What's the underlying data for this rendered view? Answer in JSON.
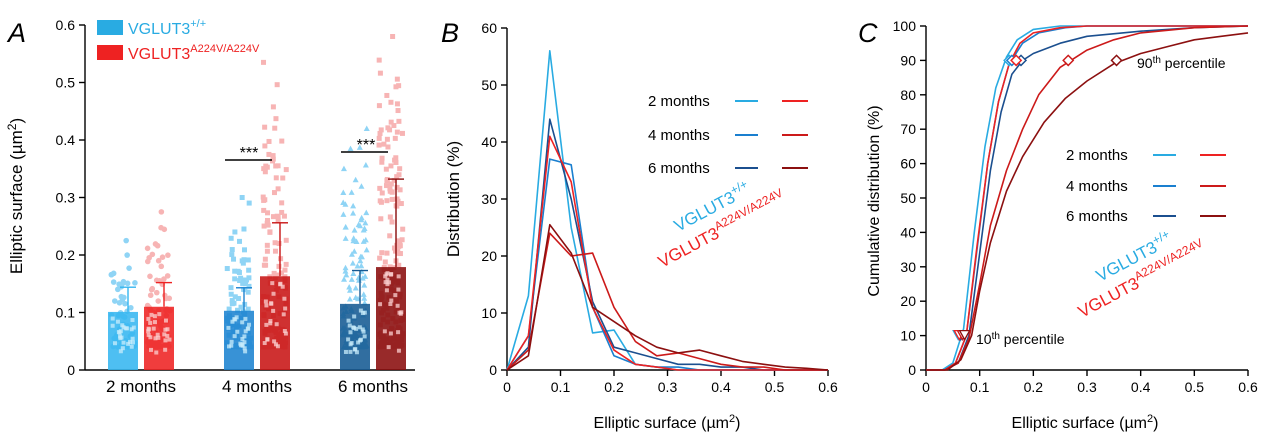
{
  "colors": {
    "wt_2": "#29abe2",
    "wt_4": "#1a7fcf",
    "wt_6": "#1b4f8f",
    "mut_2": "#ee2222",
    "mut_4": "#cc1a1a",
    "mut_6": "#8c1010",
    "wt_bar_2": "#35b6f0",
    "wt_bar_4": "#1d83d0",
    "wt_bar_6": "#155a93",
    "mut_bar_2": "#ee2222",
    "mut_bar_4": "#c81414",
    "mut_bar_6": "#8a0c0c",
    "wt_dots": "#8fd4f5",
    "mut_dots": "#f7b4b4"
  },
  "panels": {
    "A": {
      "letter": "A",
      "ylabel_main": "Elliptic surface (µm",
      "ylabel_sup": "2",
      "ylabel_end": ")",
      "legend_wt_main": "VGLUT3",
      "legend_wt_sup": "+/+",
      "legend_mut_main": "VGLUT3",
      "legend_mut_sup": "A224V/A224V",
      "sig_4": "***",
      "sig_6": "***"
    },
    "B": {
      "letter": "B",
      "ylabel": "Distribution (%)",
      "xlabel_main": "Elliptic surface (µm",
      "xlabel_sup": "2",
      "xlabel_end": ")",
      "legend_rows": [
        "2 months",
        "4 months",
        "6 months"
      ],
      "geno_wt_main": "VGLUT3",
      "geno_wt_sup": "+/+",
      "geno_mut_main": "VGLUT3",
      "geno_mut_sup": "A224V/A224V"
    },
    "C": {
      "letter": "C",
      "ylabel": "Cumulative distribution (%)",
      "xlabel_main": "Elliptic surface (µm",
      "xlabel_sup": "2",
      "xlabel_end": ")",
      "legend_rows": [
        "2 months",
        "4 months",
        "6 months"
      ],
      "geno_wt_main": "VGLUT3",
      "geno_wt_sup": "+/+",
      "geno_mut_main": "VGLUT3",
      "geno_mut_sup": "A224V/A224V",
      "p90_main": "90",
      "p90_sup": "th",
      "p90_end": " percentile",
      "p10_main": "10",
      "p10_sup": "th",
      "p10_end": " percentile"
    }
  },
  "chart_data": [
    {
      "type": "bar",
      "panel": "A",
      "categories": [
        "2 months",
        "4 months",
        "6 months"
      ],
      "ylim": [
        0,
        0.6
      ],
      "yticks": [
        "0",
        "0.1",
        "0.2",
        "0.3",
        "0.4",
        "0.5",
        "0.6"
      ],
      "ylabel": "Elliptic surface (µm2)",
      "series": [
        {
          "name": "VGLUT3+/+",
          "values": [
            0.101,
            0.103,
            0.115
          ],
          "sd": [
            0.043,
            0.04,
            0.058
          ],
          "max_points": [
            0.225,
            0.3,
            0.42
          ]
        },
        {
          "name": "VGLUT3A224V/A224V",
          "values": [
            0.11,
            0.163,
            0.179
          ],
          "sd": [
            0.042,
            0.093,
            0.153
          ],
          "max_points": [
            0.275,
            0.535,
            0.58
          ]
        }
      ],
      "significance": [
        {
          "category": "4 months",
          "y": 0.366,
          "label": "***"
        },
        {
          "category": "6 months",
          "y": 0.378,
          "label": "***"
        }
      ]
    },
    {
      "type": "line",
      "panel": "B",
      "xlim": [
        0,
        0.6
      ],
      "ylim": [
        0,
        60
      ],
      "xticks": [
        "0",
        "0.1",
        "0.2",
        "0.3",
        "0.4",
        "0.5",
        "0.6"
      ],
      "yticks": [
        "0",
        "10",
        "20",
        "30",
        "40",
        "50",
        "60"
      ],
      "xlabel": "Elliptic surface (µm2)",
      "ylabel": "Distribution (%)",
      "x": [
        0,
        0.04,
        0.08,
        0.12,
        0.16,
        0.2,
        0.24,
        0.28,
        0.32,
        0.36,
        0.4,
        0.44,
        0.48,
        0.52,
        0.56,
        0.6
      ],
      "series": [
        {
          "name": "2 months",
          "genotype": "VGLUT3+/+",
          "values": [
            0,
            13,
            56,
            25,
            6.5,
            7,
            1,
            0.5,
            0,
            0,
            0,
            0,
            0,
            0,
            0,
            0
          ]
        },
        {
          "name": "4 months",
          "genotype": "VGLUT3+/+",
          "values": [
            0,
            6,
            37,
            36,
            11,
            2.5,
            1,
            0.5,
            0.5,
            0,
            0,
            0,
            0,
            0,
            0,
            0
          ]
        },
        {
          "name": "6 months",
          "genotype": "VGLUT3+/+",
          "values": [
            0,
            4,
            44,
            30,
            12,
            4,
            3,
            2,
            1,
            1,
            0.5,
            0.5,
            0,
            0,
            0,
            0
          ]
        },
        {
          "name": "2 months",
          "genotype": "VGLUT3A224V/A224V",
          "values": [
            0,
            6,
            41,
            33,
            11,
            3.5,
            1,
            0.5,
            0,
            0,
            0,
            0,
            0,
            0,
            0,
            0
          ]
        },
        {
          "name": "4 months",
          "genotype": "VGLUT3A224V/A224V",
          "values": [
            0,
            3.5,
            24,
            20,
            20.5,
            11,
            5,
            2.5,
            3,
            2,
            1,
            0.5,
            0.5,
            0,
            0,
            0
          ]
        },
        {
          "name": "6 months",
          "genotype": "VGLUT3A224V/A224V",
          "values": [
            0,
            2.5,
            25.5,
            20.5,
            11,
            8.5,
            6,
            4,
            3,
            3.5,
            2.5,
            1.5,
            1,
            0.5,
            0.3,
            0
          ]
        }
      ]
    },
    {
      "type": "line",
      "panel": "C",
      "xlim": [
        0,
        0.6
      ],
      "ylim": [
        0,
        100
      ],
      "xticks": [
        "0",
        "0.1",
        "0.2",
        "0.3",
        "0.4",
        "0.5",
        "0.6"
      ],
      "yticks": [
        "0",
        "10",
        "20",
        "30",
        "40",
        "50",
        "60",
        "70",
        "80",
        "90",
        "100"
      ],
      "xlabel": "Elliptic surface (µm2)",
      "ylabel": "Cumulative distribution (%)",
      "series": [
        {
          "name": "2 months",
          "genotype": "VGLUT3+/+",
          "x": [
            0,
            0.03,
            0.05,
            0.07,
            0.09,
            0.11,
            0.13,
            0.15,
            0.17,
            0.2,
            0.25,
            0.3,
            0.6
          ],
          "values": [
            0,
            0,
            2,
            12,
            40,
            65,
            82,
            91,
            96,
            99,
            100,
            100,
            100
          ],
          "p10": 0.06,
          "p90": 0.155
        },
        {
          "name": "4 months",
          "genotype": "VGLUT3+/+",
          "x": [
            0,
            0.035,
            0.055,
            0.075,
            0.095,
            0.115,
            0.135,
            0.155,
            0.18,
            0.21,
            0.26,
            0.3,
            0.6
          ],
          "values": [
            0,
            0,
            2,
            10,
            35,
            60,
            78,
            89,
            95,
            98,
            99.5,
            100,
            100
          ],
          "p10": 0.063,
          "p90": 0.16
        },
        {
          "name": "6 months",
          "genotype": "VGLUT3+/+",
          "x": [
            0,
            0.035,
            0.06,
            0.08,
            0.1,
            0.12,
            0.14,
            0.16,
            0.18,
            0.2,
            0.25,
            0.3,
            0.4,
            0.5,
            0.6
          ],
          "values": [
            0,
            0,
            2,
            10,
            34,
            58,
            75,
            86,
            90,
            92,
            95,
            97,
            98.5,
            99.5,
            100
          ],
          "p10": 0.065,
          "p90": 0.177
        },
        {
          "name": "2 months",
          "genotype": "VGLUT3A224V/A224V",
          "x": [
            0,
            0.035,
            0.055,
            0.075,
            0.095,
            0.115,
            0.135,
            0.155,
            0.175,
            0.2,
            0.25,
            0.3,
            0.6
          ],
          "values": [
            0,
            0,
            2,
            10,
            36,
            60,
            78,
            89,
            95,
            98,
            99.5,
            100,
            100
          ],
          "p10": 0.062,
          "p90": 0.168
        },
        {
          "name": "4 months",
          "genotype": "VGLUT3A224V/A224V",
          "x": [
            0,
            0.035,
            0.06,
            0.08,
            0.1,
            0.12,
            0.15,
            0.18,
            0.21,
            0.25,
            0.3,
            0.35,
            0.4,
            0.5,
            0.6
          ],
          "values": [
            0,
            0,
            2,
            9,
            25,
            42,
            58,
            70,
            80,
            88,
            93,
            96,
            98,
            99.5,
            100
          ],
          "p10": 0.068,
          "p90": 0.265
        },
        {
          "name": "6 months",
          "genotype": "VGLUT3A224V/A224V",
          "x": [
            0,
            0.04,
            0.065,
            0.085,
            0.1,
            0.12,
            0.15,
            0.18,
            0.22,
            0.26,
            0.3,
            0.35,
            0.4,
            0.45,
            0.5,
            0.55,
            0.6
          ],
          "values": [
            0,
            0,
            3,
            10,
            23,
            37,
            52,
            62,
            72,
            79,
            84,
            89,
            92,
            94,
            96,
            97,
            98
          ],
          "p10": 0.072,
          "p90": 0.355
        }
      ]
    }
  ]
}
